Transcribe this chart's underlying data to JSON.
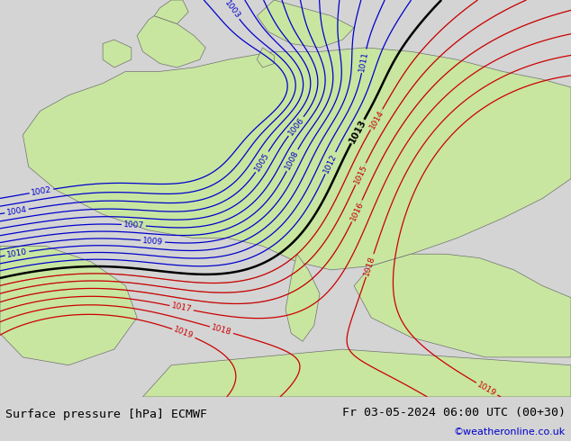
{
  "title_left": "Surface pressure [hPa] ECMWF",
  "title_right": "Fr 03-05-2024 06:00 UTC (00+30)",
  "watermark": "©weatheronline.co.uk",
  "bg_land_color": "#c8e6a0",
  "bg_sea_color": "#d0d0d0",
  "blue_contour_color": "#0000cc",
  "red_contour_color": "#cc0000",
  "black_contour_color": "#000000",
  "gray_contour_color": "#888888",
  "bottom_bar_color": "#d4d4d4",
  "fig_width": 6.34,
  "fig_height": 4.9,
  "dpi": 100
}
